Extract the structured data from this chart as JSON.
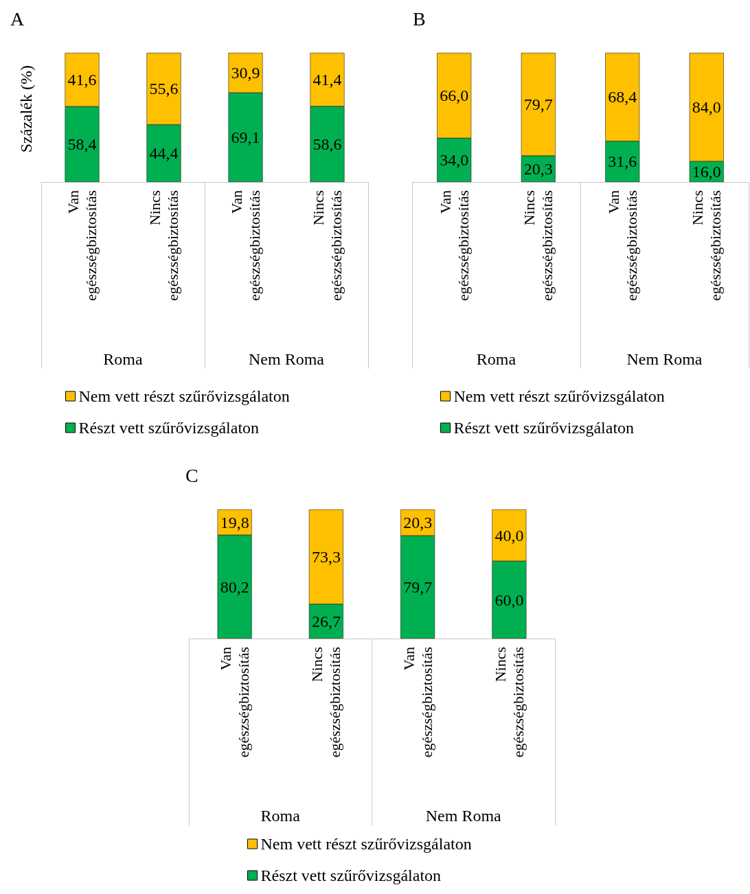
{
  "chart_data": [
    {
      "type": "bar",
      "title": "A",
      "ylabel": "Százalék (%)",
      "stacked": true,
      "legend": "bottom",
      "grid": false,
      "tick_labels": "x",
      "categories": [
        "Van\negészségbiztosítás",
        "Nincs\negészségbiztosítás",
        "Van\negészségbiztosítás",
        "Nincs\negészségbiztosítás"
      ],
      "annotations": [
        "Roma",
        "Nem Roma"
      ],
      "series": [
        {
          "name": "Részt vett szűrővizsgálaton",
          "color": "#00b050",
          "values": [
            58.4,
            44.4,
            69.1,
            58.6
          ],
          "value_labels": [
            "58,4",
            "44,4",
            "69,1",
            "58,6"
          ]
        },
        {
          "name": "Nem vett részt szűrővizsgálaton",
          "color": "#ffc000",
          "values": [
            41.6,
            55.6,
            30.9,
            41.4
          ],
          "value_labels": [
            "41,6",
            "55,6",
            "30,9",
            "41,4"
          ]
        }
      ]
    },
    {
      "type": "bar",
      "title": "B",
      "stacked": true,
      "legend": "bottom",
      "grid": false,
      "tick_labels": "x",
      "categories": [
        "Van\negészségbiztosítás",
        "Nincs\negészségbiztosítás",
        "Van\negészségbiztosítás",
        "Nincs\negészségbiztosítás"
      ],
      "annotations": [
        "Roma",
        "Nem Roma"
      ],
      "series": [
        {
          "name": "Részt vett szűrővizsgálaton",
          "color": "#00b050",
          "values": [
            34.0,
            20.3,
            31.6,
            16.0
          ],
          "value_labels": [
            "34,0",
            "20,3",
            "31,6",
            "16,0"
          ]
        },
        {
          "name": "Nem vett részt szűrővizsgálaton",
          "color": "#ffc000",
          "values": [
            66.0,
            79.7,
            68.4,
            84.0
          ],
          "value_labels": [
            "66,0",
            "79,7",
            "68,4",
            "84,0"
          ]
        }
      ]
    },
    {
      "type": "bar",
      "title": "C",
      "stacked": true,
      "legend": "bottom",
      "grid": false,
      "tick_labels": "x",
      "categories": [
        "Van\negészségbiztosítás",
        "Nincs\negészségbiztosítás",
        "Van\negészségbiztosítás",
        "Nincs\negészségbiztosítás"
      ],
      "annotations": [
        "Roma",
        "Nem Roma"
      ],
      "series": [
        {
          "name": "Részt vett szűrővizsgálaton",
          "color": "#00b050",
          "values": [
            80.2,
            26.7,
            79.7,
            60.0
          ],
          "value_labels": [
            "80,2",
            "26,7",
            "79,7",
            "60,0"
          ]
        },
        {
          "name": "Nem vett részt szűrővizsgálaton",
          "color": "#ffc000",
          "values": [
            19.8,
            73.3,
            20.3,
            40.0
          ],
          "value_labels": [
            "19,8",
            "73,3",
            "20,3",
            "40,0"
          ]
        }
      ]
    }
  ]
}
